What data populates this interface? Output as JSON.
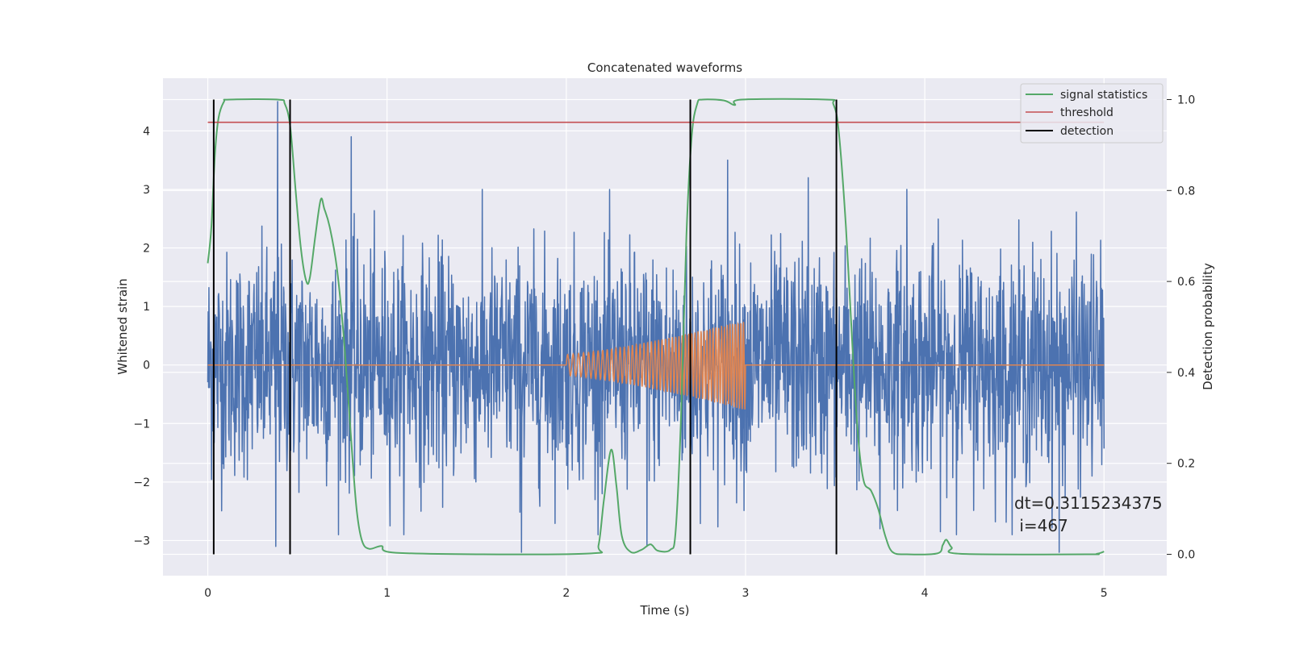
{
  "chart_data": {
    "type": "line",
    "title": "Concatenated waveforms",
    "xlabel": "Time (s)",
    "ylabel": "Whitened strain",
    "y2label": "Detection probability",
    "xlim": [
      -0.25,
      5.35
    ],
    "ylim": [
      -3.6,
      4.9
    ],
    "y2lim": [
      -0.047,
      1.047
    ],
    "xticks": [
      0,
      1,
      2,
      3,
      4,
      5
    ],
    "xtick_labels": [
      "0",
      "1",
      "2",
      "3",
      "4",
      "5"
    ],
    "yticks": [
      -3,
      -2,
      -1,
      0,
      1,
      2,
      3,
      4
    ],
    "ytick_labels": [
      "−3",
      "−2",
      "−1",
      "0",
      "1",
      "2",
      "3",
      "4"
    ],
    "y2ticks": [
      0.0,
      0.2,
      0.4,
      0.6,
      0.8,
      1.0
    ],
    "y2tick_labels": [
      "0.0",
      "0.2",
      "0.4",
      "0.6",
      "0.8",
      "1.0"
    ],
    "grid": true,
    "legend_placement": "top-right",
    "series": [
      {
        "name": "",
        "axis": "left",
        "color": "#4c72b0",
        "kind": "noise",
        "x_range": [
          0,
          5
        ],
        "spread": 0.95,
        "approx_extremes": [
          -3.2,
          4.5
        ],
        "peaks": [
          {
            "x": 0.39,
            "y": 4.5
          },
          {
            "x": 0.8,
            "y": 3.9
          },
          {
            "x": 2.9,
            "y": 3.5
          },
          {
            "x": 3.35,
            "y": 3.2
          },
          {
            "x": 3.9,
            "y": 3.0
          },
          {
            "x": 1.75,
            "y": -3.2
          },
          {
            "x": 0.38,
            "y": -3.1
          },
          {
            "x": 4.75,
            "y": -3.2
          },
          {
            "x": 2.45,
            "y": -3.1
          },
          {
            "x": 3.75,
            "y": -2.8
          }
        ]
      },
      {
        "name": "",
        "axis": "left",
        "color": "#dd8452",
        "kind": "chirp",
        "x_range": [
          0,
          5
        ],
        "chirp_start": 2.0,
        "chirp_end": 3.0,
        "amplitude": [
          0.18,
          0.77
        ]
      },
      {
        "name": "signal statistics",
        "axis": "right",
        "color": "#55a868",
        "points": [
          [
            0.0,
            0.64
          ],
          [
            0.02,
            0.72
          ],
          [
            0.04,
            0.88
          ],
          [
            0.06,
            0.96
          ],
          [
            0.09,
            0.995
          ],
          [
            0.12,
            1.0
          ],
          [
            0.39,
            1.0
          ],
          [
            0.43,
            0.99
          ],
          [
            0.46,
            0.94
          ],
          [
            0.49,
            0.8
          ],
          [
            0.52,
            0.67
          ],
          [
            0.55,
            0.6
          ],
          [
            0.57,
            0.61
          ],
          [
            0.6,
            0.7
          ],
          [
            0.63,
            0.78
          ],
          [
            0.65,
            0.76
          ],
          [
            0.68,
            0.72
          ],
          [
            0.72,
            0.63
          ],
          [
            0.76,
            0.47
          ],
          [
            0.8,
            0.25
          ],
          [
            0.83,
            0.1
          ],
          [
            0.86,
            0.03
          ],
          [
            0.9,
            0.012
          ],
          [
            0.97,
            0.018
          ],
          [
            1.03,
            0.004
          ],
          [
            1.5,
            0.0
          ],
          [
            2.14,
            0.002
          ],
          [
            2.18,
            0.02
          ],
          [
            2.21,
            0.12
          ],
          [
            2.25,
            0.23
          ],
          [
            2.28,
            0.15
          ],
          [
            2.31,
            0.04
          ],
          [
            2.36,
            0.005
          ],
          [
            2.42,
            0.01
          ],
          [
            2.47,
            0.022
          ],
          [
            2.51,
            0.008
          ],
          [
            2.58,
            0.01
          ],
          [
            2.61,
            0.05
          ],
          [
            2.64,
            0.3
          ],
          [
            2.67,
            0.7
          ],
          [
            2.7,
            0.92
          ],
          [
            2.73,
            0.99
          ],
          [
            2.76,
            1.0
          ],
          [
            2.88,
            0.998
          ],
          [
            2.94,
            0.988
          ],
          [
            2.98,
            1.0
          ],
          [
            3.45,
            1.0
          ],
          [
            3.49,
            0.99
          ],
          [
            3.52,
            0.93
          ],
          [
            3.56,
            0.72
          ],
          [
            3.6,
            0.43
          ],
          [
            3.63,
            0.25
          ],
          [
            3.66,
            0.16
          ],
          [
            3.7,
            0.14
          ],
          [
            3.74,
            0.1
          ],
          [
            3.78,
            0.04
          ],
          [
            3.82,
            0.005
          ],
          [
            3.9,
            0.0
          ],
          [
            4.07,
            0.002
          ],
          [
            4.1,
            0.02
          ],
          [
            4.12,
            0.032
          ],
          [
            4.15,
            0.015
          ],
          [
            4.2,
            0.001
          ],
          [
            4.9,
            0.0
          ],
          [
            4.96,
            0.001
          ],
          [
            5.0,
            0.006
          ]
        ]
      },
      {
        "name": "threshold",
        "axis": "right",
        "color": "#c44e52",
        "points": [
          [
            0.0,
            0.95
          ],
          [
            5.0,
            0.95
          ]
        ]
      },
      {
        "name": "detection",
        "axis": "right",
        "color": "#000000",
        "vlines": [
          0.033,
          0.459,
          2.692,
          3.507
        ],
        "vline_range": [
          0.0,
          1.0
        ]
      }
    ],
    "annotations": [
      "dt=0.3115234375",
      " i=467"
    ]
  }
}
